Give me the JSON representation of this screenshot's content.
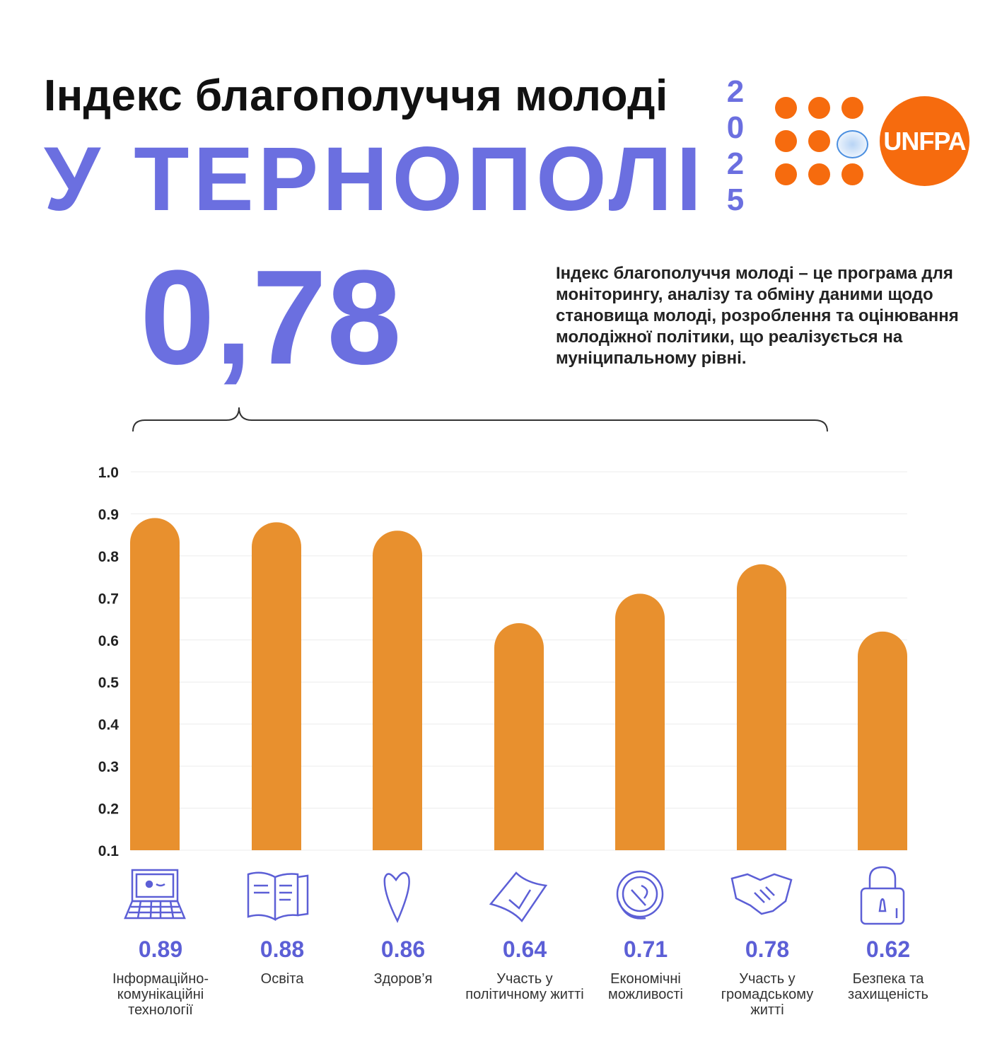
{
  "header": {
    "title_line1": "Індекс благополуччя молоді",
    "title_line2": "У ТЕРНОПОЛІ",
    "year_digits": [
      "2",
      "0",
      "2",
      "5"
    ],
    "logo_text": "UNFPA"
  },
  "index_value": "0,78",
  "description": "Індекс благополуччя молоді – це програма для моніторингу, аналізу та обміну даними щодо становища молоді, розроблення та оцінювання молодіжної політики, що реалізується на муніципальному рівні.",
  "colors": {
    "accent": "#6b6fe0",
    "bar": "#e8902e",
    "logo": "#f66b0e"
  },
  "chart_data": {
    "type": "bar",
    "title": "",
    "xlabel": "",
    "ylabel": "",
    "ylim": [
      0.1,
      1.0
    ],
    "yticks": [
      "0.1",
      "0.2",
      "0.3",
      "0.4",
      "0.5",
      "0.6",
      "0.7",
      "0.8",
      "0.9",
      "1.0"
    ],
    "grid": true,
    "categories": [
      "Інформаційно-комунікаційні технології",
      "Освіта",
      "Здоров’я",
      "Участь у політичному житті",
      "Економічні можливості",
      "Участь у громадському житті",
      "Безпека та захищеність"
    ],
    "values": [
      0.89,
      0.88,
      0.86,
      0.64,
      0.71,
      0.78,
      0.62
    ],
    "value_labels": [
      "0.89",
      "0.88",
      "0.86",
      "0.64",
      "0.71",
      "0.78",
      "0.62"
    ],
    "icons": [
      "laptop-icon",
      "book-icon",
      "heart-icon",
      "ballot-icon",
      "coin-icon",
      "handshake-icon",
      "padlock-icon"
    ]
  }
}
